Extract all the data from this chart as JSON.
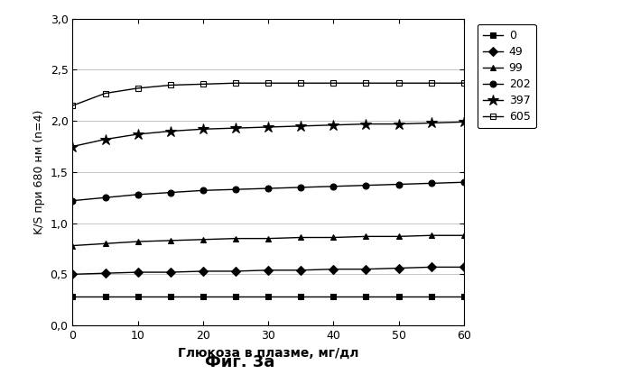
{
  "x": [
    0,
    5,
    10,
    15,
    20,
    25,
    30,
    35,
    40,
    45,
    50,
    55,
    60
  ],
  "series_order": [
    "0",
    "49",
    "99",
    "202",
    "397",
    "605"
  ],
  "series": {
    "0": {
      "label": "0",
      "marker": "s",
      "fillstyle": "full",
      "y": [
        0.28,
        0.28,
        0.28,
        0.28,
        0.28,
        0.28,
        0.28,
        0.28,
        0.28,
        0.28,
        0.28,
        0.28,
        0.28
      ]
    },
    "49": {
      "label": "49",
      "marker": "D",
      "fillstyle": "full",
      "y": [
        0.5,
        0.51,
        0.52,
        0.52,
        0.53,
        0.53,
        0.54,
        0.54,
        0.55,
        0.55,
        0.56,
        0.57,
        0.57
      ]
    },
    "99": {
      "label": "99",
      "marker": "^",
      "fillstyle": "full",
      "y": [
        0.78,
        0.8,
        0.82,
        0.83,
        0.84,
        0.85,
        0.85,
        0.86,
        0.86,
        0.87,
        0.87,
        0.88,
        0.88
      ]
    },
    "202": {
      "label": "202",
      "marker": "o",
      "fillstyle": "full",
      "y": [
        1.22,
        1.25,
        1.28,
        1.3,
        1.32,
        1.33,
        1.34,
        1.35,
        1.36,
        1.37,
        1.38,
        1.39,
        1.4
      ]
    },
    "397": {
      "label": "397",
      "marker": "*",
      "fillstyle": "full",
      "y": [
        1.75,
        1.82,
        1.87,
        1.9,
        1.92,
        1.93,
        1.94,
        1.95,
        1.96,
        1.97,
        1.97,
        1.98,
        1.99
      ]
    },
    "605": {
      "label": "605",
      "marker": "s",
      "fillstyle": "none",
      "y": [
        2.15,
        2.27,
        2.32,
        2.35,
        2.36,
        2.37,
        2.37,
        2.37,
        2.37,
        2.37,
        2.37,
        2.37,
        2.37
      ]
    }
  },
  "xlabel": "Глюкоза в плазме, мг/дл",
  "ylabel": "K/S при 680 нм (n=4)",
  "ylim": [
    0.0,
    3.0
  ],
  "xlim": [
    0,
    60
  ],
  "yticks": [
    0.0,
    0.5,
    1.0,
    1.5,
    2.0,
    2.5,
    3.0
  ],
  "xticks": [
    0,
    10,
    20,
    30,
    40,
    50,
    60
  ],
  "title": "Фиг. 3a",
  "background_color": "#ffffff",
  "line_color": "#000000",
  "linewidth": 1.0,
  "markersize": 5,
  "markersize_star": 9
}
